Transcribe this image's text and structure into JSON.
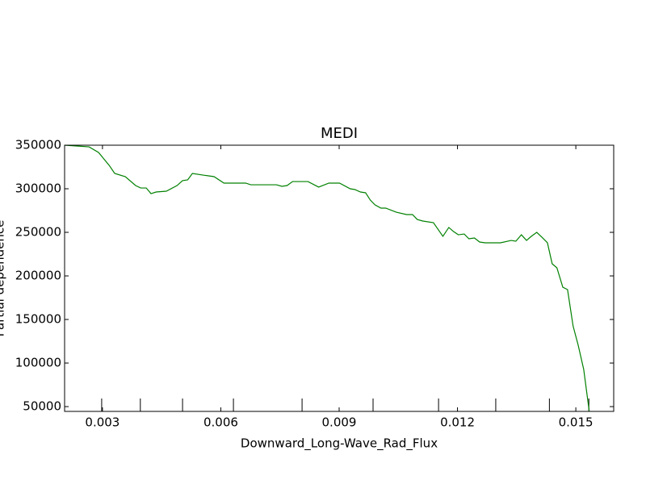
{
  "chart_data": {
    "type": "line",
    "title": "MEDI",
    "xlabel": "Downward_Long-Wave_Rad_Flux",
    "ylabel": "Partial dependence",
    "x": [
      0.00204,
      0.00235,
      0.00266,
      0.0029,
      0.00317,
      0.00331,
      0.00358,
      0.00384,
      0.00397,
      0.00411,
      0.00423,
      0.00436,
      0.00462,
      0.00489,
      0.00503,
      0.00516,
      0.00528,
      0.00555,
      0.00583,
      0.00608,
      0.00663,
      0.00676,
      0.00741,
      0.00755,
      0.00768,
      0.00782,
      0.00821,
      0.00848,
      0.00874,
      0.00901,
      0.00928,
      0.0094,
      0.00954,
      0.00967,
      0.00979,
      0.00991,
      0.01006,
      0.01018,
      0.01045,
      0.01071,
      0.01086,
      0.01098,
      0.01112,
      0.01139,
      0.01163,
      0.01178,
      0.0119,
      0.01202,
      0.01217,
      0.01229,
      0.01243,
      0.01256,
      0.0127,
      0.01309,
      0.01336,
      0.01348,
      0.01362,
      0.01375,
      0.01387,
      0.01401,
      0.01414,
      0.01428,
      0.0144,
      0.01452,
      0.01467,
      0.01479,
      0.01493,
      0.01506,
      0.0152,
      0.01534
    ],
    "series": [
      {
        "color": "#008000",
        "values": [
          350000,
          349100,
          348100,
          341700,
          326900,
          317600,
          313900,
          303700,
          300900,
          300900,
          294400,
          296300,
          297200,
          303700,
          309300,
          310200,
          317600,
          315700,
          313900,
          306500,
          306500,
          304600,
          304600,
          302800,
          303700,
          308300,
          308300,
          301900,
          306500,
          306500,
          300000,
          299100,
          296300,
          295400,
          287000,
          281500,
          277800,
          277800,
          273100,
          270400,
          270400,
          264800,
          263000,
          261100,
          245400,
          255600,
          250900,
          247200,
          248100,
          242600,
          243500,
          238900,
          238000,
          238000,
          240700,
          239800,
          247200,
          240700,
          245400,
          250000,
          244400,
          238000,
          213900,
          209300,
          187000,
          184300,
          142600,
          120400,
          92600,
          44500
        ]
      }
    ],
    "rug": [
      0.00298,
      0.00396,
      0.00503,
      0.00632,
      0.00806,
      0.00986,
      0.01152,
      0.01297,
      0.01433,
      0.01533
    ],
    "xlim": [
      0.00204,
      0.01596
    ],
    "ylim": [
      44500,
      350000
    ],
    "xticks": [
      0.003,
      0.006,
      0.009,
      0.012,
      0.015
    ],
    "yticks": [
      50000,
      100000,
      150000,
      200000,
      250000,
      300000,
      350000
    ]
  }
}
